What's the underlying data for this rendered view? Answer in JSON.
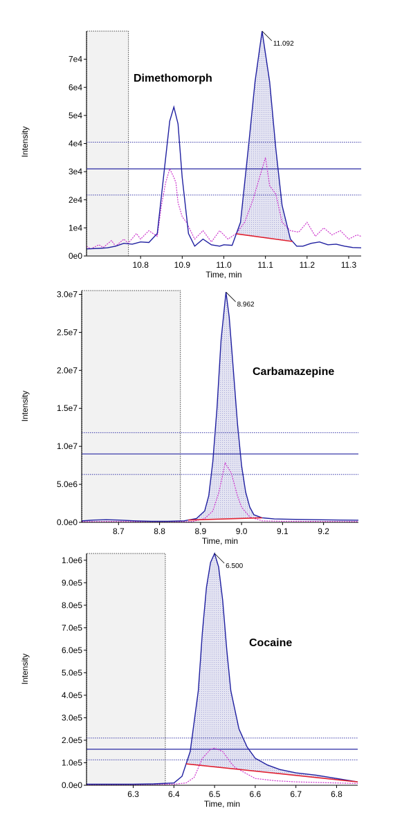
{
  "colors": {
    "main_trace": "#1f1fa0",
    "confirm_trace": "#cc33cc",
    "baseline": "#e02030",
    "threshold": "#3a3aaa",
    "window_fill": "#f2f2f2",
    "peak_fill": "#a8a8d8"
  },
  "chart_data": [
    {
      "type": "line",
      "compound": "Dimethomorph",
      "xlabel": "Time, min",
      "ylabel": "Intensity",
      "xlim": [
        10.67,
        11.33
      ],
      "ylim": [
        0,
        80000
      ],
      "xticks": [
        "10.8",
        "10.9",
        "11.0",
        "11.1",
        "11.2",
        "11.3"
      ],
      "xtick_values": [
        10.8,
        10.9,
        11.0,
        11.1,
        11.2,
        11.3
      ],
      "yticks": [
        "0e0",
        "1e4",
        "2e4",
        "3e4",
        "4e4",
        "5e4",
        "6e4",
        "7e4"
      ],
      "ytick_values": [
        0,
        10000,
        20000,
        30000,
        40000,
        50000,
        60000,
        70000
      ],
      "window_end": 10.77,
      "peak_label": "11.092",
      "peak_rt": 11.092,
      "peak_height": 80000,
      "integration": [
        11.03,
        11.165
      ],
      "thresholds": [
        {
          "y": 31000,
          "style": "solid"
        },
        {
          "y": 40500,
          "style": "dotted"
        },
        {
          "y": 21700,
          "style": "dotted"
        }
      ],
      "series": [
        {
          "role": "quantifier",
          "x": [
            10.67,
            10.7,
            10.72,
            10.74,
            10.76,
            10.78,
            10.8,
            10.82,
            10.84,
            10.855,
            10.87,
            10.88,
            10.89,
            10.9,
            10.915,
            10.93,
            10.95,
            10.97,
            10.99,
            11.0,
            11.02,
            11.04,
            11.06,
            11.075,
            11.092,
            11.11,
            11.125,
            11.14,
            11.16,
            11.175,
            11.19,
            11.21,
            11.23,
            11.25,
            11.27,
            11.29,
            11.31,
            11.33
          ],
          "y": [
            2500,
            2700,
            2900,
            3500,
            4500,
            4200,
            5000,
            4800,
            8000,
            28000,
            48000,
            53000,
            47000,
            28000,
            8000,
            3500,
            6000,
            4000,
            3500,
            4000,
            3800,
            12000,
            40000,
            62000,
            80000,
            62000,
            38000,
            18000,
            6000,
            3500,
            3500,
            4500,
            5000,
            4000,
            4200,
            3500,
            3000,
            2900
          ]
        },
        {
          "role": "qualifier",
          "x": [
            10.67,
            10.68,
            10.7,
            10.71,
            10.73,
            10.74,
            10.76,
            10.77,
            10.79,
            10.8,
            10.82,
            10.84,
            10.85,
            10.86,
            10.87,
            10.88,
            10.885,
            10.89,
            10.9,
            10.91,
            10.93,
            10.95,
            10.97,
            10.99,
            11.01,
            11.03,
            11.05,
            11.07,
            11.09,
            11.1,
            11.11,
            11.125,
            11.14,
            11.16,
            11.18,
            11.2,
            11.22,
            11.24,
            11.26,
            11.28,
            11.3,
            11.32,
            11.33
          ],
          "y": [
            3500,
            2500,
            4000,
            3000,
            5500,
            3500,
            6000,
            4500,
            8000,
            6000,
            9000,
            7000,
            18000,
            26000,
            31000,
            28000,
            26000,
            19000,
            14000,
            12000,
            6000,
            9000,
            5000,
            9000,
            6000,
            8000,
            12000,
            20000,
            30000,
            35000,
            25000,
            22000,
            12000,
            9000,
            8500,
            12000,
            7000,
            10000,
            7500,
            9000,
            6000,
            7500,
            7000
          ]
        }
      ]
    },
    {
      "type": "line",
      "compound": "Carbamazepine",
      "xlabel": "Time, min",
      "ylabel": "Intensity",
      "xlim": [
        8.61,
        9.285
      ],
      "ylim": [
        0,
        30500000
      ],
      "xticks": [
        "8.7",
        "8.8",
        "8.9",
        "9.0",
        "9.1",
        "9.2"
      ],
      "xtick_values": [
        8.7,
        8.8,
        8.9,
        9.0,
        9.1,
        9.2
      ],
      "yticks": [
        "0.0e0",
        "5.0e6",
        "1.0e7",
        "1.5e7",
        "2.0e7",
        "2.5e7",
        "3.0e7"
      ],
      "ytick_values": [
        0,
        5000000,
        10000000,
        15000000,
        20000000,
        25000000,
        30000000
      ],
      "window_end": 8.85,
      "peak_label": "8.962",
      "peak_rt": 8.962,
      "peak_height": 30300000,
      "integration": [
        8.87,
        9.05
      ],
      "thresholds": [
        {
          "y": 9000000,
          "style": "solid"
        },
        {
          "y": 11800000,
          "style": "dotted"
        },
        {
          "y": 6300000,
          "style": "dotted"
        }
      ],
      "series": [
        {
          "role": "quantifier",
          "x": [
            8.61,
            8.64,
            8.67,
            8.7,
            8.74,
            8.78,
            8.82,
            8.86,
            8.89,
            8.91,
            8.92,
            8.93,
            8.94,
            8.95,
            8.962,
            8.97,
            8.98,
            8.99,
            9.0,
            9.01,
            9.02,
            9.03,
            9.05,
            9.08,
            9.12,
            9.18,
            9.24,
            9.285
          ],
          "y": [
            200000,
            300000,
            350000,
            300000,
            200000,
            150000,
            150000,
            200000,
            500000,
            1500000,
            3500000,
            8000000,
            15000000,
            24000000,
            30300000,
            27000000,
            20000000,
            13000000,
            7500000,
            4000000,
            2000000,
            1000000,
            600000,
            450000,
            400000,
            350000,
            300000,
            280000
          ]
        },
        {
          "role": "qualifier",
          "x": [
            8.61,
            8.7,
            8.8,
            8.88,
            8.91,
            8.93,
            8.945,
            8.96,
            8.975,
            8.99,
            9.0,
            9.02,
            9.05,
            9.1,
            9.2,
            9.285
          ],
          "y": [
            100000,
            120000,
            80000,
            100000,
            500000,
            1500000,
            4000000,
            7800000,
            6500000,
            3500000,
            2000000,
            700000,
            200000,
            150000,
            120000,
            100000
          ]
        }
      ]
    },
    {
      "type": "line",
      "compound": "Cocaine",
      "xlabel": "Time, min",
      "ylabel": "Intensity",
      "xlim": [
        6.185,
        6.852
      ],
      "ylim": [
        0,
        1030000
      ],
      "xticks": [
        "6.3",
        "6.4",
        "6.5",
        "6.6",
        "6.7",
        "6.8"
      ],
      "xtick_values": [
        6.3,
        6.4,
        6.5,
        6.6,
        6.7,
        6.8
      ],
      "yticks": [
        "0.0e0",
        "1.0e5",
        "2.0e5",
        "3.0e5",
        "4.0e5",
        "5.0e5",
        "6.0e5",
        "7.0e5",
        "8.0e5",
        "9.0e5",
        "1.0e6"
      ],
      "ytick_values": [
        0,
        100000,
        200000,
        300000,
        400000,
        500000,
        600000,
        700000,
        800000,
        900000,
        1000000
      ],
      "window_end": 6.378,
      "peak_label": "6.500",
      "peak_rt": 6.5,
      "peak_height": 1030000,
      "integration": [
        6.43,
        6.852
      ],
      "thresholds": [
        {
          "y": 160000,
          "style": "solid"
        },
        {
          "y": 210000,
          "style": "dotted"
        },
        {
          "y": 113000,
          "style": "dotted"
        }
      ],
      "series": [
        {
          "role": "quantifier",
          "x": [
            6.185,
            6.25,
            6.3,
            6.35,
            6.4,
            6.42,
            6.44,
            6.46,
            6.47,
            6.48,
            6.49,
            6.5,
            6.51,
            6.52,
            6.53,
            6.54,
            6.56,
            6.58,
            6.6,
            6.63,
            6.66,
            6.7,
            6.75,
            6.8,
            6.852
          ],
          "y": [
            5000,
            5000,
            5000,
            6000,
            10000,
            40000,
            150000,
            420000,
            680000,
            880000,
            990000,
            1030000,
            970000,
            820000,
            600000,
            420000,
            250000,
            170000,
            120000,
            90000,
            70000,
            55000,
            45000,
            30000,
            15000
          ]
        },
        {
          "role": "qualifier",
          "x": [
            6.185,
            6.3,
            6.4,
            6.43,
            6.45,
            6.47,
            6.49,
            6.5,
            6.52,
            6.54,
            6.55,
            6.57,
            6.6,
            6.65,
            6.7,
            6.8,
            6.852
          ],
          "y": [
            3000,
            3000,
            5000,
            10000,
            35000,
            120000,
            160000,
            165000,
            150000,
            100000,
            80000,
            60000,
            30000,
            20000,
            15000,
            10000,
            8000
          ]
        }
      ]
    }
  ]
}
